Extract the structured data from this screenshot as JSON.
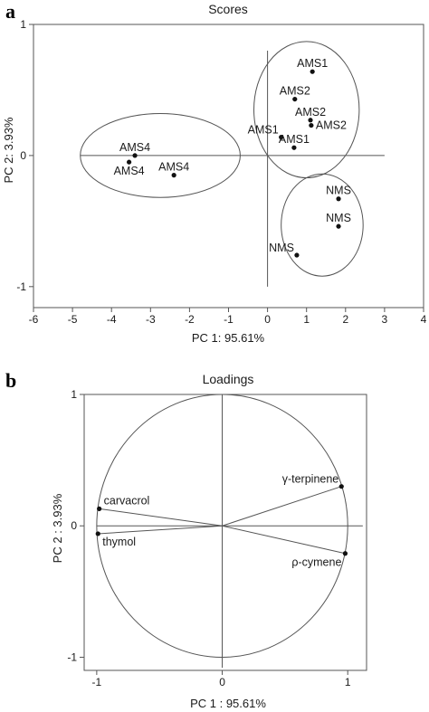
{
  "chart_data": [
    {
      "type": "scatter",
      "panel_letter": "a",
      "title": "Scores",
      "xlabel": "PC 1: 95.61%",
      "ylabel": "PC 2: 3.93%",
      "xlim": [
        -6,
        4
      ],
      "ylim": [
        -1.16,
        1
      ],
      "xticks": [
        "-6",
        "-5",
        "-4",
        "-3",
        "-2",
        "-1",
        "0",
        "1",
        "2",
        "3",
        "4"
      ],
      "yticks": [
        "1",
        "0",
        "-1"
      ],
      "reference_lines": {
        "horizontal": {
          "y": 0,
          "x_from": -4.8,
          "x_to": 3.0
        },
        "vertical": {
          "x": 0,
          "y_from": -1.0,
          "y_to": 0.8
        }
      },
      "points": [
        {
          "label": "AMS1",
          "x": 1.15,
          "y": 0.64,
          "label_pos": "above"
        },
        {
          "label": "AMS2",
          "x": 0.7,
          "y": 0.43,
          "label_pos": "above"
        },
        {
          "label": "AMS2",
          "x": 1.1,
          "y": 0.27,
          "label_pos": "above"
        },
        {
          "label": "AMS2",
          "x": 1.12,
          "y": 0.23,
          "label_pos": "right"
        },
        {
          "label": "AMS1",
          "x": 0.35,
          "y": 0.14,
          "label_pos": "left-above"
        },
        {
          "label": "AMS1",
          "x": 0.68,
          "y": 0.06,
          "label_pos": "above"
        },
        {
          "label": "AMS4",
          "x": -3.4,
          "y": 0.0,
          "label_pos": "above"
        },
        {
          "label": "AMS4",
          "x": -3.55,
          "y": -0.05,
          "label_pos": "below"
        },
        {
          "label": "AMS4",
          "x": -2.4,
          "y": -0.15,
          "label_pos": "above"
        },
        {
          "label": "NMS",
          "x": 1.82,
          "y": -0.33,
          "label_pos": "above"
        },
        {
          "label": "NMS",
          "x": 1.82,
          "y": -0.54,
          "label_pos": "above"
        },
        {
          "label": "NMS",
          "x": 0.75,
          "y": -0.76,
          "label_pos": "left-above"
        }
      ],
      "groups": [
        {
          "cx": -2.75,
          "cy": 0.0,
          "rx": 2.05,
          "ry": 0.32
        },
        {
          "cx": 1.0,
          "cy": 0.35,
          "rx": 1.35,
          "ry": 0.52
        },
        {
          "cx": 1.4,
          "cy": -0.53,
          "rx": 1.05,
          "ry": 0.39
        }
      ]
    },
    {
      "type": "scatter",
      "panel_letter": "b",
      "title": "Loadings",
      "xlabel": "PC 1 : 95.61%",
      "ylabel": "PC 2 :  3.93%",
      "xlim": [
        -1.1,
        1.15
      ],
      "ylim": [
        -1.1,
        1.0
      ],
      "xticks": [
        "-1",
        "0",
        "1"
      ],
      "yticks": [
        "1",
        "0",
        "-1"
      ],
      "unit_circle": true,
      "reference_lines": {
        "horizontal": {
          "y": 0,
          "x_from": -1.0,
          "x_to": 1.12
        },
        "vertical": {
          "x": 0,
          "y_from": -1.08,
          "y_to": 1.0
        }
      },
      "loadings": [
        {
          "label": "carvacrol",
          "x": -0.98,
          "y": 0.13,
          "label_pos": "right-above"
        },
        {
          "label": "thymol",
          "x": -0.99,
          "y": -0.06,
          "label_pos": "right-below"
        },
        {
          "label": "γ-terpinene",
          "x": 0.95,
          "y": 0.3,
          "label_pos": "left-above"
        },
        {
          "label": "ρ-cymene",
          "x": 0.98,
          "y": -0.21,
          "label_pos": "left-below"
        }
      ]
    }
  ]
}
